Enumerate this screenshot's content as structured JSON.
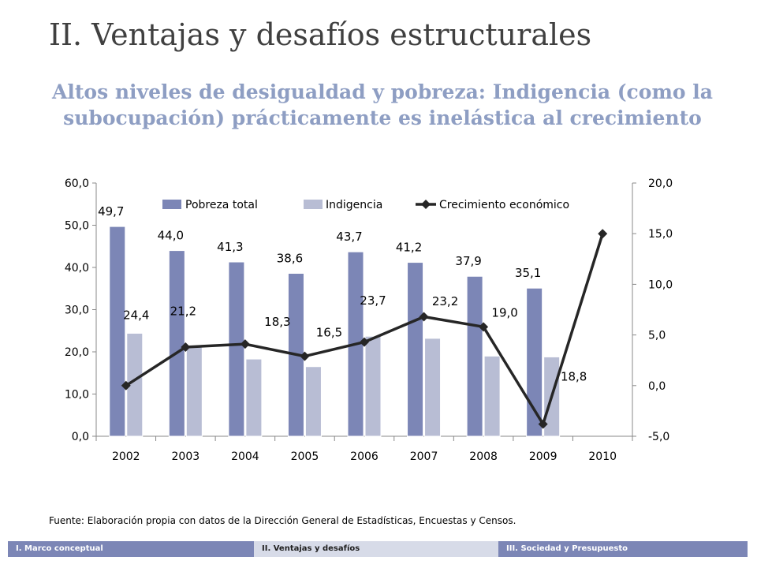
{
  "slide": {
    "title": "II. Ventajas y desafíos estructurales",
    "subtitle": "Altos niveles de desigualdad y pobreza: Indigencia (como la subocupación) prácticamente es inelástica al crecimiento"
  },
  "source": "Fuente: Elaboración propia con datos de la Dirección General de Estadísticas, Encuestas y Censos.",
  "footer": {
    "tabs": [
      {
        "label": "I. Marco conceptual",
        "active": false
      },
      {
        "label": "II. Ventajas y desafíos",
        "active": true
      },
      {
        "label": "III. Sociedad y Presupuesto",
        "active": false
      }
    ]
  },
  "colors": {
    "pobreza": "#7c86b6",
    "indigencia": "#b8bdd4",
    "crecimiento": "#262626"
  },
  "chart_data": {
    "type": "bar",
    "categories": [
      "2002",
      "2003",
      "2004",
      "2005",
      "2006",
      "2007",
      "2008",
      "2009",
      "2010"
    ],
    "series": [
      {
        "name": "Pobreza total",
        "type": "bar",
        "axis": "left",
        "values": [
          49.7,
          44.0,
          41.3,
          38.6,
          43.7,
          41.2,
          37.9,
          35.1,
          null
        ],
        "labels": [
          "49,7",
          "44,0",
          "41,3",
          "38,6",
          "43,7",
          "41,2",
          "37,9",
          "35,1",
          ""
        ]
      },
      {
        "name": "Indigencia",
        "type": "bar",
        "axis": "left",
        "values": [
          24.4,
          21.2,
          18.3,
          16.5,
          23.7,
          23.2,
          19.0,
          18.8,
          null
        ],
        "labels": [
          "24,4",
          "21,2",
          "18,3",
          "16,5",
          "23,7",
          "23,2",
          "19,0",
          "18,8",
          ""
        ]
      },
      {
        "name": "Crecimiento económico",
        "type": "line",
        "axis": "right",
        "values": [
          0.0,
          3.8,
          4.1,
          2.9,
          4.3,
          6.8,
          5.8,
          -3.8,
          15.0
        ]
      }
    ],
    "y_left": {
      "lim": [
        0,
        60
      ],
      "ticks": [
        "0,0",
        "10,0",
        "20,0",
        "30,0",
        "40,0",
        "50,0",
        "60,0"
      ]
    },
    "y_right": {
      "lim": [
        -5,
        20
      ],
      "ticks": [
        "-5,0",
        "0,0",
        "5,0",
        "10,0",
        "15,0",
        "20,0"
      ]
    },
    "legend_position": "top",
    "grid": false
  }
}
